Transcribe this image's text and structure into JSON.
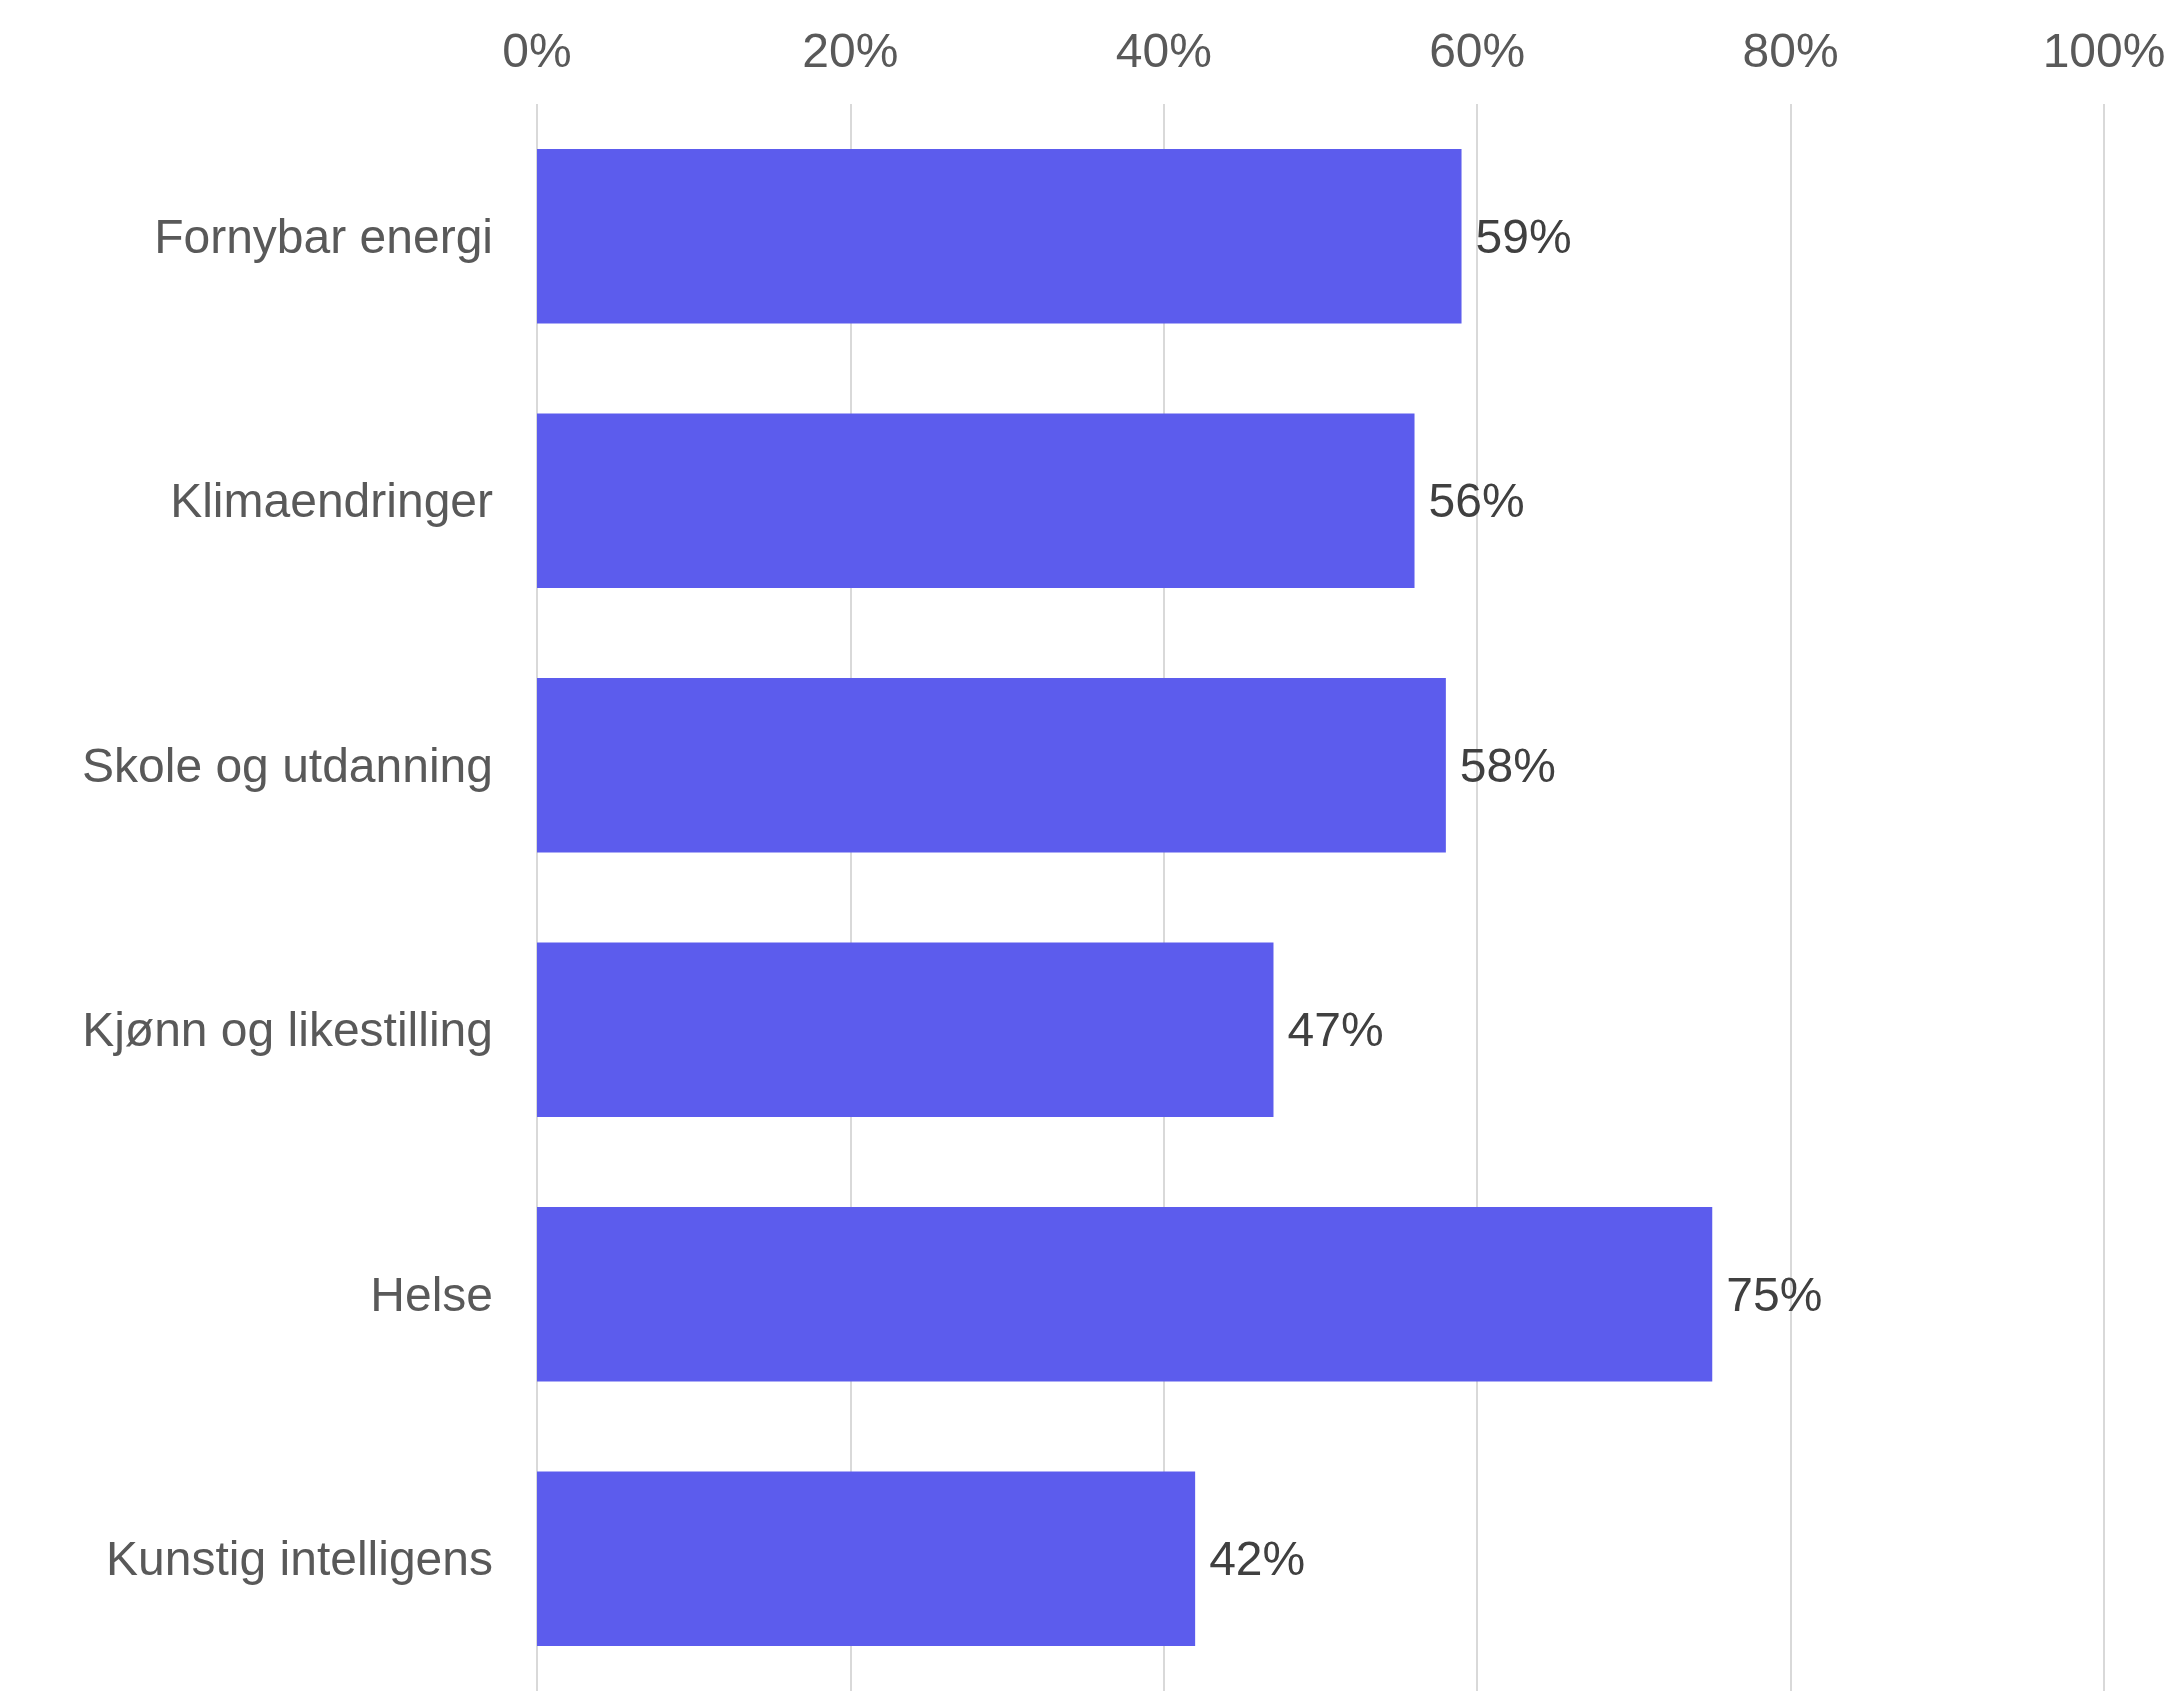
{
  "chart_data": {
    "type": "bar",
    "orientation": "horizontal",
    "categories": [
      "Fornybar energi",
      "Klimaendringer",
      "Skole og utdanning",
      "Kjønn og likestilling",
      "Helse",
      "Kunstig intelligens"
    ],
    "values": [
      59,
      56,
      58,
      47,
      75,
      42
    ],
    "value_labels": [
      "59%",
      "56%",
      "58%",
      "47%",
      "75%",
      "42%"
    ],
    "color": "#5c5ced",
    "xlim": [
      0,
      100
    ],
    "xticks": [
      {
        "value": 0,
        "label": "0%"
      },
      {
        "value": 20,
        "label": "20%"
      },
      {
        "value": 40,
        "label": "40%"
      },
      {
        "value": 60,
        "label": "60%"
      },
      {
        "value": 80,
        "label": "80%"
      },
      {
        "value": 100,
        "label": "100%"
      }
    ],
    "grid": "x"
  }
}
